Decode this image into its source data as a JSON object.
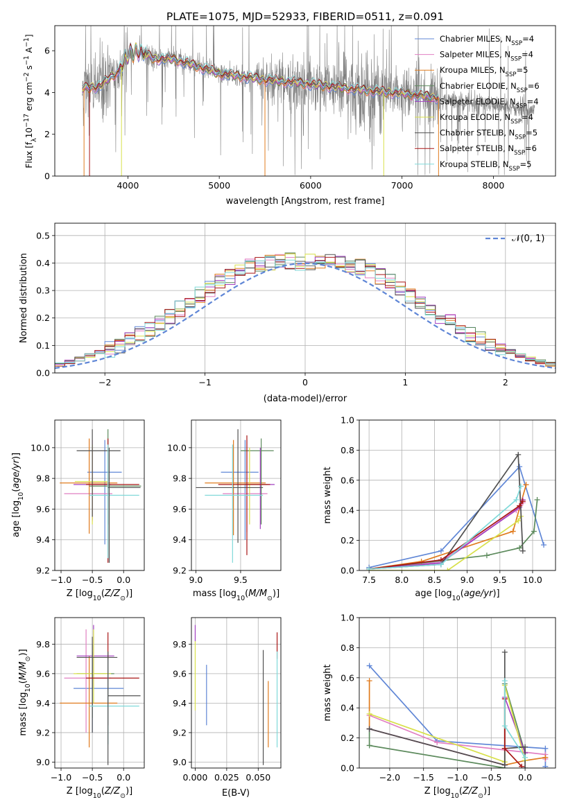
{
  "title": "PLATE=1075, MJD=52933, FIBERID=0511, z=0.091",
  "colors": {
    "Chabrier MILES": "#5f86d6",
    "Salpeter MILES": "#e17fc2",
    "Kroupa MILES": "#e07b1d",
    "Chabrier ELODIE": "#5c8a5c",
    "Salpeter ELODIE": "#a23fc0",
    "Kroupa ELODIE": "#d8e04a",
    "Chabrier STELIB": "#505050",
    "Salpeter STELIB": "#a81414",
    "Kroupa STELIB": "#7fd9d9",
    "data": "#808080",
    "gauss": "#5f86d6",
    "grid": "#b0b0b0"
  },
  "legend_base": [
    "Chabrier MILES",
    "Salpeter MILES",
    "Kroupa MILES",
    "Chabrier ELODIE",
    "Salpeter ELODIE",
    "Kroupa ELODIE",
    "Chabrier STELIB",
    "Salpeter STELIB",
    "Kroupa STELIB"
  ],
  "legend_nssp": [
    "4",
    "4",
    "5",
    "6",
    "4",
    "4",
    "5",
    "6",
    "5"
  ],
  "chart_data": [
    {
      "id": "spectrum",
      "type": "line",
      "xlabel": "wavelength [Angstrom, rest frame]",
      "ylabel": "Flux [f_λ 10^-17 erg cm^-2 s^-1 A^-1]",
      "xlim": [
        3200,
        8680
      ],
      "ylim": [
        0,
        7.2
      ],
      "xticks": [
        4000,
        5000,
        6000,
        7000,
        8000
      ],
      "yticks": [
        0,
        2,
        4,
        6
      ],
      "data_range": [
        3500,
        8450
      ],
      "model_range": [
        3500,
        7400
      ],
      "continuum": [
        [
          3500,
          4.2
        ],
        [
          3700,
          4.3
        ],
        [
          3800,
          4.7
        ],
        [
          3900,
          5.0
        ],
        [
          4000,
          5.8
        ],
        [
          4100,
          6.0
        ],
        [
          4300,
          5.6
        ],
        [
          4500,
          5.6
        ],
        [
          4800,
          5.2
        ],
        [
          5000,
          4.9
        ],
        [
          5200,
          4.8
        ],
        [
          5500,
          4.6
        ],
        [
          5800,
          4.5
        ],
        [
          6000,
          4.4
        ],
        [
          6300,
          4.25
        ],
        [
          6600,
          4.1
        ],
        [
          7000,
          3.95
        ],
        [
          7400,
          3.75
        ],
        [
          7800,
          3.5
        ],
        [
          8100,
          3.35
        ],
        [
          8450,
          3.1
        ]
      ],
      "grid": false,
      "legend": "top-right"
    },
    {
      "id": "residuals",
      "type": "histogram",
      "xlabel": "(data-model)/error",
      "ylabel": "Normed distribution",
      "xlim": [
        -2.5,
        2.5
      ],
      "ylim": [
        0,
        0.545
      ],
      "xticks": [
        -2,
        -1,
        0,
        1,
        2
      ],
      "yticks": [
        0.0,
        0.1,
        0.2,
        0.3,
        0.4,
        0.5
      ],
      "bin_width": 0.1,
      "gauss_label": "𝒩(0, 1)",
      "grid": true,
      "legend": "top-right"
    },
    {
      "id": "age_vs_Z",
      "type": "errorbar",
      "xlabel": "Z [log10(Z/Z⊙)]",
      "ylabel": "age [log10(age/yr)]",
      "xlim": [
        -1.1,
        0.33
      ],
      "ylim": [
        9.2,
        10.18
      ],
      "xticks": [
        -1.0,
        -0.5,
        0.0
      ],
      "yticks": [
        9.2,
        9.4,
        9.6,
        9.8,
        10.0
      ],
      "points": [
        {
          "m": "Chabrier MILES",
          "x": -0.3,
          "xe": [
            -0.58,
            -0.03
          ],
          "y": 9.84,
          "ye": [
            9.37,
            10.05
          ]
        },
        {
          "m": "Salpeter MILES",
          "x": -0.5,
          "xe": [
            -0.95,
            -0.18
          ],
          "y": 9.7,
          "ye": [
            9.52,
            10.05
          ]
        },
        {
          "m": "Kroupa MILES",
          "x": -0.55,
          "xe": [
            -1.02,
            -0.1
          ],
          "y": 9.77,
          "ye": [
            9.44,
            10.06
          ]
        },
        {
          "m": "Chabrier ELODIE",
          "x": -0.25,
          "xe": [
            -0.55,
            0.28
          ],
          "y": 9.75,
          "ye": [
            9.5,
            10.12
          ]
        },
        {
          "m": "Salpeter ELODIE",
          "x": -0.5,
          "xe": [
            -0.8,
            -0.2
          ],
          "y": 9.76,
          "ye": [
            9.53,
            10.0
          ]
        },
        {
          "m": "Kroupa ELODIE",
          "x": -0.5,
          "xe": [
            -0.78,
            -0.25
          ],
          "y": 9.78,
          "ye": [
            9.5,
            10.02
          ]
        },
        {
          "m": "Chabrier STELIB",
          "x": -0.5,
          "xe": [
            -0.75,
            -0.05
          ],
          "y": 9.98,
          "ye": [
            9.55,
            10.12
          ]
        },
        {
          "m": "Salpeter STELIB",
          "x": -0.25,
          "xe": [
            -0.6,
            0.25
          ],
          "y": 9.76,
          "ye": [
            9.25,
            10.06
          ]
        },
        {
          "m": "Kroupa STELIB",
          "x": -0.25,
          "xe": [
            -0.55,
            0.25
          ],
          "y": 9.69,
          "ye": [
            9.28,
            10.02
          ]
        }
      ],
      "extra": [
        {
          "m": "Chabrier STELIB",
          "x": -0.23,
          "xe": [
            -0.25,
            0.27
          ],
          "y": 9.74,
          "ye": [
            9.25,
            10.0
          ]
        }
      ],
      "grid": true
    },
    {
      "id": "age_vs_mass",
      "type": "errorbar",
      "xlabel": "mass [log10(M/M⊙)]",
      "ylabel": "",
      "xlim": [
        8.95,
        9.95
      ],
      "ylim": [
        9.2,
        10.18
      ],
      "xticks": [
        9.0,
        9.5
      ],
      "yticks": [
        9.2,
        9.4,
        9.6,
        9.8,
        10.0
      ],
      "points": [
        {
          "m": "Chabrier MILES",
          "x": 9.55,
          "xe": [
            9.28,
            9.7
          ],
          "y": 9.84,
          "ye": [
            9.4,
            10.05
          ]
        },
        {
          "m": "Salpeter MILES",
          "x": 9.57,
          "xe": [
            9.3,
            9.8
          ],
          "y": 9.7,
          "ye": [
            9.45,
            10.05
          ]
        },
        {
          "m": "Kroupa MILES",
          "x": 9.42,
          "xe": [
            9.1,
            9.78
          ],
          "y": 9.77,
          "ye": [
            9.43,
            10.05
          ]
        },
        {
          "m": "Chabrier ELODIE",
          "x": 9.73,
          "xe": [
            9.5,
            9.87
          ],
          "y": 9.98,
          "ye": [
            9.5,
            10.06
          ]
        },
        {
          "m": "Salpeter ELODIE",
          "x": 9.72,
          "xe": [
            9.55,
            9.88
          ],
          "y": 9.76,
          "ye": [
            9.47,
            10.0
          ]
        },
        {
          "m": "Kroupa ELODIE",
          "x": 9.6,
          "xe": [
            9.45,
            9.8
          ],
          "y": 9.76,
          "ye": [
            9.5,
            10.0
          ]
        },
        {
          "m": "Chabrier STELIB",
          "x": 9.47,
          "xe": [
            9.0,
            9.75
          ],
          "y": 9.74,
          "ye": [
            9.38,
            10.12
          ]
        },
        {
          "m": "Salpeter STELIB",
          "x": 9.57,
          "xe": [
            9.25,
            9.83
          ],
          "y": 9.76,
          "ye": [
            9.3,
            10.08
          ]
        },
        {
          "m": "Kroupa STELIB",
          "x": 9.41,
          "xe": [
            9.1,
            9.75
          ],
          "y": 9.69,
          "ye": [
            9.25,
            10.02
          ]
        }
      ],
      "grid": true
    },
    {
      "id": "weight_vs_age",
      "type": "line",
      "xlabel": "age [log10(age/yr)]",
      "ylabel": "mass weight",
      "xlim": [
        7.35,
        10.35
      ],
      "ylim": [
        0,
        1.0
      ],
      "xticks": [
        7.5,
        8.0,
        8.5,
        9.0,
        9.5,
        10.0
      ],
      "yticks": [
        0.0,
        0.2,
        0.4,
        0.6,
        0.8,
        1.0
      ],
      "series": [
        {
          "m": "Chabrier MILES",
          "x": [
            7.5,
            8.6,
            9.8,
            10.17
          ],
          "y": [
            0.02,
            0.13,
            0.69,
            0.17
          ]
        },
        {
          "m": "Salpeter MILES",
          "x": [
            7.5,
            8.6,
            9.75,
            9.85
          ],
          "y": [
            0.01,
            0.06,
            0.4,
            0.45
          ]
        },
        {
          "m": "Kroupa MILES",
          "x": [
            7.5,
            8.3,
            9.7,
            9.9
          ],
          "y": [
            0.01,
            0.06,
            0.26,
            0.57
          ]
        },
        {
          "m": "Chabrier ELODIE",
          "x": [
            7.5,
            9.3,
            9.8,
            10.02,
            10.07
          ],
          "y": [
            0.01,
            0.1,
            0.15,
            0.26,
            0.47
          ]
        },
        {
          "m": "Salpeter ELODIE",
          "x": [
            7.5,
            8.6,
            9.8,
            9.85
          ],
          "y": [
            0.01,
            0.05,
            0.42,
            0.47
          ]
        },
        {
          "m": "Kroupa ELODIE",
          "x": [
            7.5,
            8.7,
            9.78,
            9.82
          ],
          "y": [
            0.0,
            0.0,
            0.33,
            0.36
          ]
        },
        {
          "m": "Chabrier STELIB",
          "x": [
            7.5,
            8.6,
            9.78,
            9.85
          ],
          "y": [
            0.01,
            0.04,
            0.77,
            0.13
          ]
        },
        {
          "m": "Salpeter STELIB",
          "x": [
            7.5,
            8.6,
            9.8,
            9.85
          ],
          "y": [
            0.01,
            0.07,
            0.43,
            0.46
          ]
        },
        {
          "m": "Kroupa STELIB",
          "x": [
            7.5,
            8.6,
            9.75,
            9.82
          ],
          "y": [
            0.01,
            0.04,
            0.47,
            0.56
          ]
        }
      ],
      "grid": true
    },
    {
      "id": "mass_vs_Z",
      "type": "errorbar",
      "xlabel": "Z [log10(Z/Z⊙)]",
      "ylabel": "mass [log10(M/M⊙)]",
      "xlim": [
        -1.1,
        0.33
      ],
      "ylim": [
        8.96,
        9.98
      ],
      "xticks": [
        -1.0,
        -0.5,
        0.0
      ],
      "yticks": [
        9.0,
        9.2,
        9.4,
        9.6,
        9.8
      ],
      "points": [
        {
          "m": "Chabrier MILES",
          "x": -0.5,
          "xe": [
            -0.8,
            0.0
          ],
          "y": 9.5,
          "ye": [
            9.2,
            9.75
          ]
        },
        {
          "m": "Salpeter MILES",
          "x": -0.6,
          "xe": [
            -0.95,
            -0.2
          ],
          "y": 9.57,
          "ye": [
            9.2,
            9.9
          ]
        },
        {
          "m": "Kroupa MILES",
          "x": -0.55,
          "xe": [
            -1.02,
            -0.1
          ],
          "y": 9.4,
          "ye": [
            9.1,
            9.72
          ]
        },
        {
          "m": "Chabrier ELODIE",
          "x": -0.5,
          "xe": [
            -0.75,
            -0.15
          ],
          "y": 9.6,
          "ye": [
            9.3,
            9.8
          ]
        },
        {
          "m": "Salpeter ELODIE",
          "x": -0.48,
          "xe": [
            -0.75,
            -0.15
          ],
          "y": 9.72,
          "ye": [
            9.5,
            9.93
          ]
        },
        {
          "m": "Kroupa ELODIE",
          "x": -0.48,
          "xe": [
            -0.8,
            -0.2
          ],
          "y": 9.6,
          "ye": [
            9.4,
            9.9
          ]
        },
        {
          "m": "Chabrier STELIB",
          "x": -0.5,
          "xe": [
            -0.75,
            -0.1
          ],
          "y": 9.71,
          "ye": [
            9.2,
            9.85
          ]
        },
        {
          "m": "Salpeter STELIB",
          "x": -0.25,
          "xe": [
            -0.6,
            0.25
          ],
          "y": 9.57,
          "ye": [
            9.25,
            9.88
          ]
        },
        {
          "m": "Kroupa STELIB",
          "x": -0.25,
          "xe": [
            -0.55,
            0.25
          ],
          "y": 9.38,
          "ye": [
            9.12,
            9.7
          ]
        }
      ],
      "extra": [
        {
          "m": "Chabrier STELIB",
          "x": -0.25,
          "xe": [
            -0.25,
            0.27
          ],
          "y": 9.45,
          "ye": [
            8.98,
            9.75
          ]
        }
      ],
      "grid": true
    },
    {
      "id": "mass_vs_ebv",
      "type": "errorbar",
      "xlabel": "E(B-V)",
      "ylabel": "",
      "xlim": [
        -0.003,
        0.068
      ],
      "ylim": [
        8.96,
        9.98
      ],
      "xticks": [
        0.0,
        0.025,
        0.05
      ],
      "tick_labels": [
        "0.000",
        "0.025",
        "0.050"
      ],
      "yticks": [
        9.0,
        9.2,
        9.4,
        9.6,
        9.8
      ],
      "points": [
        {
          "m": "Kroupa ELODIE",
          "x": 0.0,
          "ye": [
            9.35,
            9.82
          ]
        },
        {
          "m": "Salpeter ELODIE",
          "x": 0.0,
          "ye": [
            9.82,
            9.93
          ]
        },
        {
          "m": "Chabrier MILES",
          "x": 0.009,
          "ye": [
            9.25,
            9.66
          ]
        },
        {
          "m": "Chabrier STELIB",
          "x": 0.054,
          "ye": [
            8.98,
            9.76
          ]
        },
        {
          "m": "Kroupa MILES",
          "x": 0.058,
          "ye": [
            9.1,
            9.55
          ]
        },
        {
          "m": "Salpeter STELIB",
          "x": 0.065,
          "ye": [
            9.7,
            9.88
          ]
        },
        {
          "m": "Kroupa STELIB",
          "x": 0.065,
          "ye": [
            9.1,
            9.75
          ]
        }
      ],
      "grid": true
    },
    {
      "id": "weight_vs_Z",
      "type": "line",
      "xlabel": "Z [log10(Z/Z⊙)]",
      "ylabel": "mass weight",
      "xlim": [
        -2.45,
        0.45
      ],
      "ylim": [
        0,
        1.0
      ],
      "xticks": [
        -2.0,
        -1.5,
        -1.0,
        -0.5,
        0.0
      ],
      "yticks": [
        0.0,
        0.2,
        0.4,
        0.6,
        0.8,
        1.0
      ],
      "series": [
        {
          "m": "Chabrier MILES",
          "x": [
            -2.3,
            -1.3,
            0.3,
            0.3
          ],
          "y": [
            0.68,
            0.18,
            0.13,
            0.01
          ]
        },
        {
          "m": "Salpeter MILES",
          "x": [
            -2.3,
            -1.3,
            0.3,
            0.3
          ],
          "y": [
            0.35,
            0.17,
            0.09,
            0.06
          ]
        },
        {
          "m": "Kroupa MILES",
          "x": [
            -2.3,
            -2.3,
            -0.3,
            0.0,
            0.3
          ],
          "y": [
            0.58,
            0.26,
            0.02,
            0.05,
            0.07
          ]
        },
        {
          "m": "Chabrier ELODIE",
          "x": [
            -2.3,
            -2.3,
            -0.3,
            -0.3,
            0.0
          ],
          "y": [
            0.26,
            0.15,
            0.0,
            0.56,
            0.1
          ]
        },
        {
          "m": "Salpeter ELODIE",
          "x": [
            -2.3,
            -0.3,
            -0.3,
            0.0
          ],
          "y": [
            0.26,
            0.02,
            0.47,
            0.1
          ]
        },
        {
          "m": "Kroupa ELODIE",
          "x": [
            -2.3,
            -0.3,
            -0.3,
            0.0
          ],
          "y": [
            0.36,
            0.04,
            0.55,
            0.05
          ]
        },
        {
          "m": "Chabrier STELIB",
          "x": [
            -2.3,
            -0.3,
            -0.3,
            -0.3,
            0.0,
            0.0
          ],
          "y": [
            0.26,
            0.02,
            0.77,
            0.13,
            0.14,
            0.0
          ]
        },
        {
          "m": "Salpeter STELIB",
          "x": [
            -0.3,
            -0.3,
            -0.05
          ],
          "y": [
            0.46,
            0.13,
            0.01
          ]
        },
        {
          "m": "Kroupa STELIB",
          "x": [
            -0.3,
            -0.3,
            0.0
          ],
          "y": [
            0.58,
            0.28,
            0.07
          ]
        }
      ],
      "grid": true
    }
  ]
}
